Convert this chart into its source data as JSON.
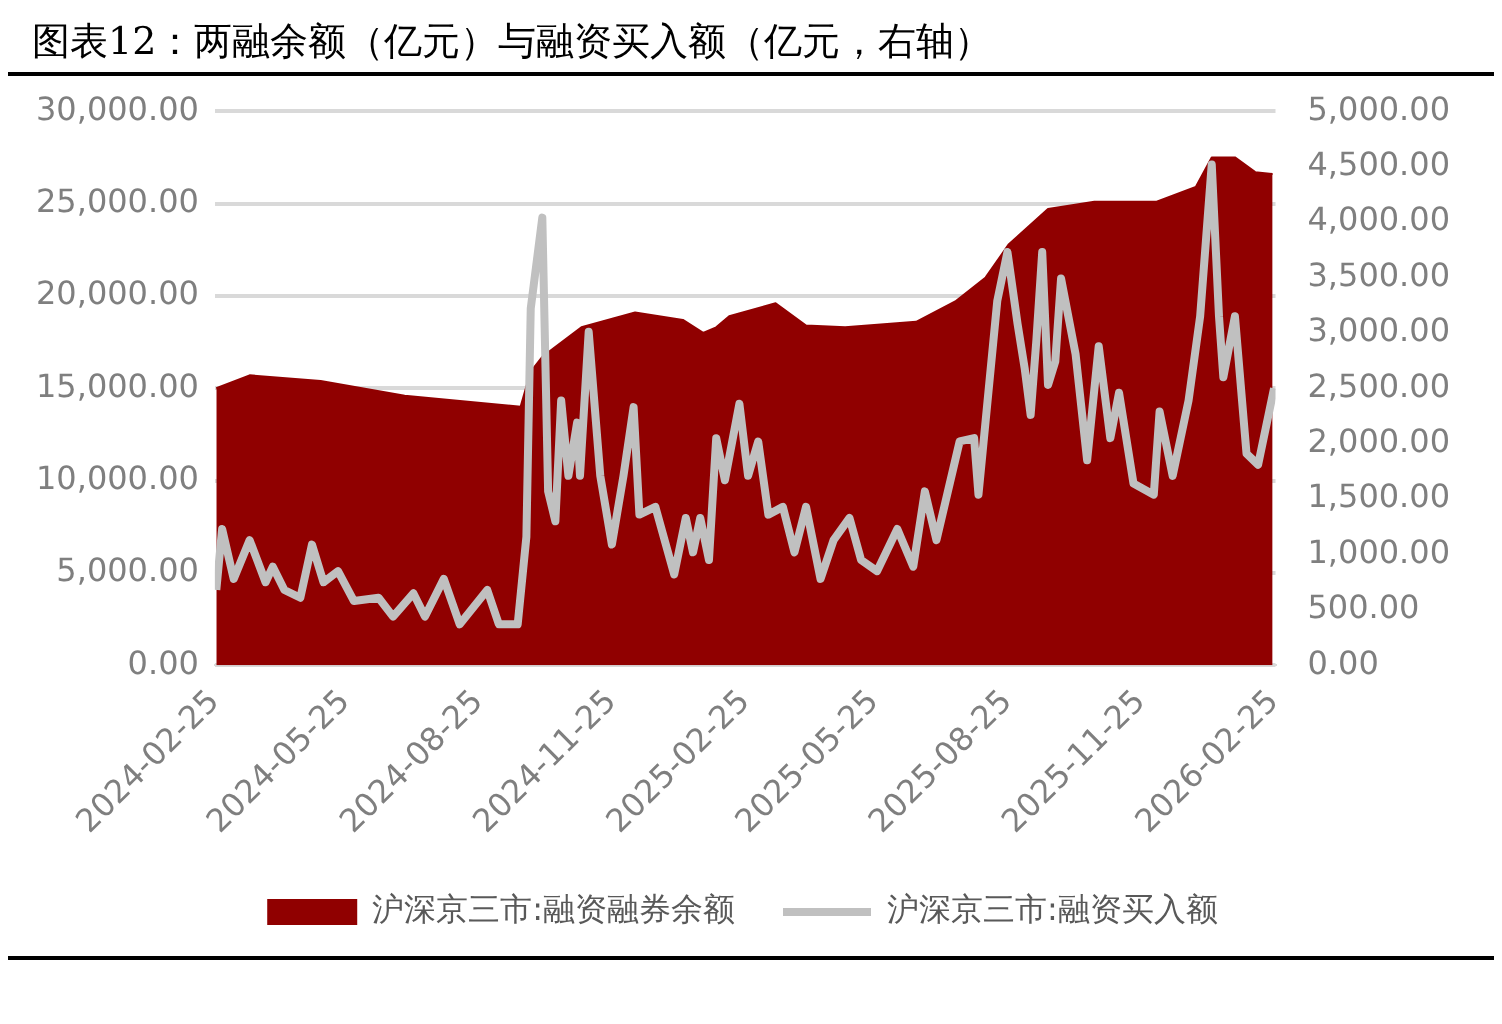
{
  "chart_data": {
    "type": "area",
    "title": "图表12：两融余额（亿元）与融资买入额（亿元，右轴）",
    "xlim": [
      "2024-02-25",
      "2026-02-26"
    ],
    "xticks": [
      "2024-02-25",
      "2024-05-25",
      "2024-08-25",
      "2024-11-25",
      "2025-02-25",
      "2025-05-25",
      "2025-08-25",
      "2025-11-25",
      "2026-02-25"
    ],
    "ylim": [
      0,
      30000
    ],
    "yticks": [
      {
        "value": 0,
        "label": "0.00"
      },
      {
        "value": 5000,
        "label": "5,000.00"
      },
      {
        "value": 10000,
        "label": "10,000.00"
      },
      {
        "value": 15000,
        "label": "15,000.00"
      },
      {
        "value": 20000,
        "label": "20,000.00"
      },
      {
        "value": 25000,
        "label": "25,000.00"
      },
      {
        "value": 30000,
        "label": "30,000.00"
      }
    ],
    "y2lim": [
      0,
      5000
    ],
    "y2ticks": [
      {
        "value": 0,
        "label": "0.00"
      },
      {
        "value": 500,
        "label": "500.00"
      },
      {
        "value": 1000,
        "label": "1,000.00"
      },
      {
        "value": 1500,
        "label": "1,500.00"
      },
      {
        "value": 2000,
        "label": "2,000.00"
      },
      {
        "value": 2500,
        "label": "2,500.00"
      },
      {
        "value": 3000,
        "label": "3,000.00"
      },
      {
        "value": 3500,
        "label": "3,500.00"
      },
      {
        "value": 4000,
        "label": "4,000.00"
      },
      {
        "value": 4500,
        "label": "4,500.00"
      },
      {
        "value": 5000,
        "label": "5,000.00"
      }
    ],
    "grid": "y",
    "legend": "bottom",
    "marker": "none",
    "series": [
      {
        "name": "沪深京三市:融资融券余额",
        "color": "#900000",
        "x": [
          "2024-02-26",
          "2024-03-20",
          "2024-05-08",
          "2024-07-05",
          "2024-09-23",
          "2024-09-30",
          "2024-10-08",
          "2024-11-04",
          "2024-12-11",
          "2025-01-13",
          "2025-01-27",
          "2025-02-05",
          "2025-02-14",
          "2025-03-18",
          "2025-04-08",
          "2025-05-05",
          "2025-06-23",
          "2025-07-20",
          "2025-08-10",
          "2025-08-26",
          "2025-09-22",
          "2025-10-24",
          "2025-12-06",
          "2026-01-02",
          "2026-01-13",
          "2026-01-29",
          "2026-02-12",
          "2026-02-24"
        ],
        "values": [
          15000,
          15700,
          15400,
          14600,
          14000,
          15900,
          16700,
          18300,
          19100,
          18700,
          18000,
          18300,
          18900,
          19600,
          18400,
          18300,
          18600,
          19700,
          21000,
          22800,
          24700,
          25100,
          25100,
          25900,
          27500,
          27500,
          26700,
          26600
        ]
      },
      {
        "name": "沪深京三市:融资买入额",
        "type": "line",
        "axis": "y2",
        "color": "#c0c0c0",
        "line_style": "solid",
        "x": [
          "2024-02-26",
          "2024-03-01",
          "2024-03-09",
          "2024-03-20",
          "2024-03-31",
          "2024-04-05",
          "2024-04-13",
          "2024-04-24",
          "2024-05-02",
          "2024-05-10",
          "2024-05-20",
          "2024-05-31",
          "2024-06-17",
          "2024-06-27",
          "2024-07-11",
          "2024-07-19",
          "2024-08-01",
          "2024-08-12",
          "2024-08-31",
          "2024-09-08",
          "2024-09-21",
          "2024-09-27",
          "2024-09-30",
          "2024-10-08",
          "2024-10-12",
          "2024-10-17",
          "2024-10-21",
          "2024-10-26",
          "2024-11-01",
          "2024-11-03",
          "2024-11-09",
          "2024-11-17",
          "2024-11-25",
          "2024-12-03",
          "2024-12-10",
          "2024-12-14",
          "2024-12-25",
          "2025-01-07",
          "2025-01-15",
          "2025-01-20",
          "2025-01-25",
          "2025-01-31",
          "2025-02-05",
          "2025-02-11",
          "2025-02-21",
          "2025-02-27",
          "2025-03-06",
          "2025-03-13",
          "2025-03-23",
          "2025-03-31",
          "2025-04-08",
          "2025-04-18",
          "2025-04-27",
          "2025-05-08",
          "2025-05-16",
          "2025-05-27",
          "2025-06-10",
          "2025-06-21",
          "2025-06-29",
          "2025-07-07",
          "2025-07-23",
          "2025-08-02",
          "2025-08-05",
          "2025-08-18",
          "2025-08-25",
          "2025-09-01",
          "2025-09-06",
          "2025-09-10",
          "2025-09-14",
          "2025-09-18",
          "2025-09-22",
          "2025-09-27",
          "2025-10-01",
          "2025-10-11",
          "2025-10-19",
          "2025-10-27",
          "2025-11-04",
          "2025-11-10",
          "2025-11-20",
          "2025-12-04",
          "2025-12-08",
          "2025-12-17",
          "2025-12-28",
          "2026-01-05",
          "2026-01-13",
          "2026-01-18",
          "2026-01-21",
          "2026-01-29",
          "2026-02-06",
          "2026-02-14",
          "2026-02-25"
        ],
        "values": [
          680,
          1230,
          780,
          1130,
          750,
          890,
          680,
          610,
          1090,
          750,
          850,
          580,
          610,
          440,
          650,
          440,
          780,
          370,
          680,
          370,
          370,
          1160,
          3220,
          4040,
          1570,
          1300,
          2390,
          1710,
          2190,
          1710,
          3010,
          1710,
          1090,
          1710,
          2330,
          1360,
          1430,
          820,
          1330,
          1020,
          1330,
          950,
          2050,
          1670,
          2360,
          1710,
          2020,
          1360,
          1430,
          1020,
          1430,
          780,
          1130,
          1330,
          950,
          850,
          1230,
          890,
          1570,
          1130,
          2020,
          2050,
          1540,
          3290,
          3730,
          3080,
          2670,
          2260,
          2940,
          3730,
          2530,
          2740,
          3490,
          2810,
          1850,
          2880,
          2050,
          2460,
          1640,
          1540,
          2290,
          1710,
          2390,
          3150,
          4520,
          3150,
          2600,
          3150,
          1910,
          1810,
          2500
        ]
      }
    ]
  }
}
